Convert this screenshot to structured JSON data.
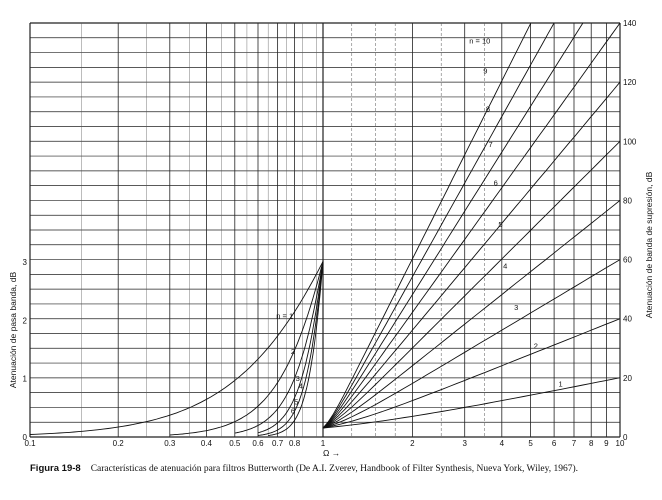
{
  "chart_data": [
    {
      "type": "line",
      "panel": "passband",
      "ylabel": "Atenuación de pasa banda, dB",
      "x_scale": "log",
      "xlim": [
        0.1,
        1
      ],
      "ylim": [
        0,
        3
      ],
      "x_ticks": [
        0.1,
        0.2,
        0.3,
        0.4,
        0.5,
        0.6,
        0.7,
        0.8,
        1
      ],
      "x_tick_labels": [
        "0.1",
        "0.2",
        "0.3",
        "0.4",
        "0.5",
        "0.6",
        "0.7",
        "0.8",
        "1"
      ],
      "y_ticks": [
        0,
        1,
        2,
        3
      ],
      "y_tick_labels": [
        "0",
        "1",
        "2",
        "3"
      ],
      "grid": true,
      "series": [
        {
          "name": "n = 1",
          "n": 1,
          "x": [
            0.1,
            0.3,
            0.5,
            0.7,
            0.85,
            1.0
          ],
          "y": [
            0.04,
            0.38,
            0.97,
            1.74,
            2.35,
            3.01
          ]
        },
        {
          "name": "2",
          "n": 2,
          "x": [
            0.3,
            0.5,
            0.7,
            0.85,
            1.0
          ],
          "y": [
            0.04,
            0.26,
            0.9,
            1.74,
            3.01
          ]
        },
        {
          "name": "3",
          "n": 3,
          "x": [
            0.5,
            0.7,
            0.85,
            1.0
          ],
          "y": [
            0.07,
            0.46,
            1.36,
            3.01
          ]
        },
        {
          "name": "4",
          "n": 4,
          "x": [
            0.6,
            0.75,
            0.9,
            1.0
          ],
          "y": [
            0.07,
            0.4,
            1.55,
            3.01
          ]
        },
        {
          "name": "5",
          "n": 5,
          "x": [
            0.6,
            0.75,
            0.9,
            1.0
          ],
          "y": [
            0.03,
            0.22,
            1.17,
            3.01
          ]
        },
        {
          "name": "6",
          "n": 6,
          "x": [
            0.65,
            0.8,
            0.9,
            1.0
          ],
          "y": [
            0.03,
            0.28,
            0.91,
            3.01
          ]
        }
      ]
    },
    {
      "type": "line",
      "panel": "stopband",
      "xlabel": "Ω",
      "ylabel": "Atenuación de banda de supresión, dB",
      "x_scale": "log",
      "xlim": [
        1,
        10
      ],
      "ylim": [
        0,
        140
      ],
      "x_ticks": [
        1,
        2,
        3,
        4,
        5,
        6,
        7,
        8,
        9,
        10
      ],
      "x_tick_labels": [
        "1",
        "2",
        "3",
        "4",
        "5",
        "6",
        "7",
        "8",
        "9",
        "10"
      ],
      "y_ticks": [
        0,
        20,
        40,
        60,
        80,
        100,
        120,
        140
      ],
      "y_tick_labels": [
        "0",
        "20",
        "40",
        "60",
        "80",
        "100",
        "120",
        "140"
      ],
      "grid": true,
      "series": [
        {
          "name": "1",
          "n": 1,
          "x": [
            1,
            10
          ],
          "y": [
            3.0,
            20.0
          ]
        },
        {
          "name": "2",
          "n": 2,
          "x": [
            1,
            10
          ],
          "y": [
            3.0,
            40.0
          ]
        },
        {
          "name": "3",
          "n": 3,
          "x": [
            1,
            10
          ],
          "y": [
            3.0,
            60.0
          ]
        },
        {
          "name": "4",
          "n": 4,
          "x": [
            1,
            10
          ],
          "y": [
            3.0,
            80.0
          ]
        },
        {
          "name": "5",
          "n": 5,
          "x": [
            1,
            10
          ],
          "y": [
            3.0,
            100.0
          ]
        },
        {
          "name": "6",
          "n": 6,
          "x": [
            1,
            10
          ],
          "y": [
            3.0,
            120.0
          ]
        },
        {
          "name": "7",
          "n": 7,
          "x": [
            1,
            10
          ],
          "y": [
            3.0,
            140.0
          ]
        },
        {
          "name": "8",
          "n": 8,
          "x": [
            1,
            7.5
          ],
          "y": [
            3.0,
            140.0
          ]
        },
        {
          "name": "9",
          "n": 9,
          "x": [
            1,
            6.0
          ],
          "y": [
            3.0,
            140.0
          ]
        },
        {
          "name": "n = 10",
          "n": 10,
          "x": [
            1,
            5.0
          ],
          "y": [
            3.0,
            140.0
          ]
        }
      ]
    }
  ],
  "chart_text": {
    "omega_arrow": "Ω →"
  },
  "caption": {
    "figure": "Figura 19-8",
    "text": "Características de atenuación para filtros Butterworth (De A.I. Zverev, Handbook of Filter Synthesis, Nueva York, Wiley, 1967)."
  }
}
